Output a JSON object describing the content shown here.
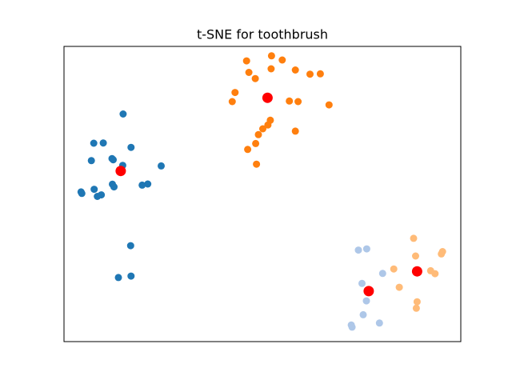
{
  "chart_data": {
    "type": "scatter",
    "title": "t-SNE for toothbrush",
    "xlabel": "",
    "ylabel": "",
    "axis_ticks_visible": false,
    "grid": false,
    "xlim": [
      0,
      100
    ],
    "ylim": [
      0,
      100
    ],
    "series": [
      {
        "color": "#1f77b4",
        "points": [
          [
            13.7,
            21.7
          ],
          [
            16.9,
            22.2
          ],
          [
            9.4,
            49.7
          ],
          [
            7.6,
            51.6
          ],
          [
            4.5,
            50.2
          ],
          [
            14.9,
            77.1
          ],
          [
            16.8,
            32.5
          ],
          [
            16.9,
            65.8
          ],
          [
            7.5,
            67.2
          ],
          [
            9.9,
            67.3
          ],
          [
            6.9,
            61.3
          ],
          [
            12.1,
            62.0
          ],
          [
            12.4,
            61.6
          ],
          [
            14.8,
            59.7
          ],
          [
            12.2,
            53.3
          ],
          [
            24.5,
            59.5
          ],
          [
            21.1,
            53.4
          ],
          [
            19.7,
            53.0
          ],
          [
            12.6,
            52.4
          ],
          [
            4.3,
            50.7
          ],
          [
            8.4,
            49.2
          ]
        ]
      },
      {
        "color": "#ff7f0e",
        "points": [
          [
            46.0,
            95.1
          ],
          [
            52.3,
            96.8
          ],
          [
            46.6,
            91.2
          ],
          [
            48.2,
            89.1
          ],
          [
            52.2,
            92.4
          ],
          [
            55.0,
            95.4
          ],
          [
            58.3,
            92.0
          ],
          [
            62.0,
            90.6
          ],
          [
            64.6,
            90.7
          ],
          [
            43.1,
            84.4
          ],
          [
            42.4,
            81.3
          ],
          [
            59.0,
            81.3
          ],
          [
            66.8,
            80.2
          ],
          [
            56.8,
            81.5
          ],
          [
            52.0,
            75.0
          ],
          [
            49.0,
            70.1
          ],
          [
            51.4,
            73.4
          ],
          [
            50.1,
            72.1
          ],
          [
            48.3,
            67.1
          ],
          [
            46.3,
            65.1
          ],
          [
            58.3,
            71.3
          ],
          [
            48.5,
            60.1
          ]
        ]
      },
      {
        "color": "#aec7e8",
        "points": [
          [
            74.2,
            31.0
          ],
          [
            76.3,
            31.4
          ],
          [
            80.3,
            23.1
          ],
          [
            75.1,
            19.7
          ],
          [
            76.2,
            13.8
          ],
          [
            75.4,
            9.1
          ],
          [
            79.5,
            6.3
          ],
          [
            72.4,
            5.6
          ],
          [
            72.6,
            4.9
          ],
          [
            77.1,
            17.2
          ]
        ]
      },
      {
        "color": "#ffbb78",
        "points": [
          [
            88.1,
            35.0
          ],
          [
            95.4,
            30.5
          ],
          [
            88.6,
            29.0
          ],
          [
            95.1,
            29.7
          ],
          [
            92.4,
            24.0
          ],
          [
            93.5,
            23.0
          ],
          [
            83.1,
            24.6
          ],
          [
            84.5,
            18.4
          ],
          [
            89.0,
            13.5
          ],
          [
            88.8,
            11.3
          ]
        ]
      }
    ],
    "centroids": {
      "color": "#ff0000",
      "points": [
        [
          14.3,
          57.8
        ],
        [
          51.3,
          82.6
        ],
        [
          76.8,
          17.1
        ],
        [
          89.0,
          23.8
        ]
      ]
    }
  }
}
